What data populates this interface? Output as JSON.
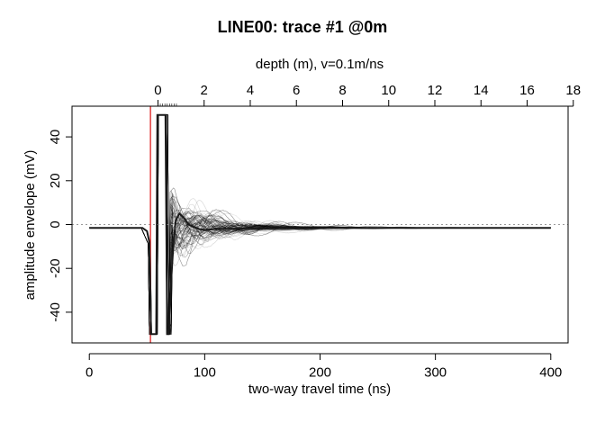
{
  "chart_data": {
    "type": "line",
    "title": "LINE00: trace #1 @0m",
    "xlabel": "two-way travel time (ns)",
    "ylabel": "amplitude envelope (mV)",
    "top_axis_label": "depth (m),   v=0.1m/ns",
    "xlim": [
      -15,
      415
    ],
    "ylim": [
      -54,
      54
    ],
    "x_ticks": [
      0,
      100,
      200,
      300,
      400
    ],
    "y_ticks": [
      -40,
      -20,
      0,
      20,
      40
    ],
    "top_ticks": [
      0,
      2,
      4,
      6,
      8,
      10,
      12,
      14,
      16,
      18
    ],
    "top_axis_zero_time_ns": 59.5,
    "velocity_m_per_ns": 0.1,
    "time_zero_marker_ns": 53,
    "clip_mV": 50,
    "baseline_mV": -1.5,
    "zero_line": true,
    "grid": false,
    "legend": "none",
    "series": [
      {
        "x": [
          0,
          46,
          50,
          52,
          53.5,
          55,
          58,
          59,
          60,
          64,
          65,
          66,
          67.5,
          69,
          71,
          73,
          75,
          78,
          82,
          86,
          90,
          95,
          100,
          110,
          120,
          135,
          150,
          175,
          200,
          250,
          300,
          350,
          400
        ],
        "values": [
          -1.5,
          -1.5,
          -3,
          -8,
          -50,
          -50,
          -50,
          50,
          50,
          50,
          50,
          50,
          -50,
          -50,
          -25,
          -8,
          2,
          5,
          3,
          0,
          -1,
          -2,
          -2.5,
          -2,
          -2,
          -1.8,
          -1.7,
          -1.6,
          -1.5,
          -1.5,
          -1.5,
          -1.5,
          -1.5
        ]
      }
    ]
  }
}
